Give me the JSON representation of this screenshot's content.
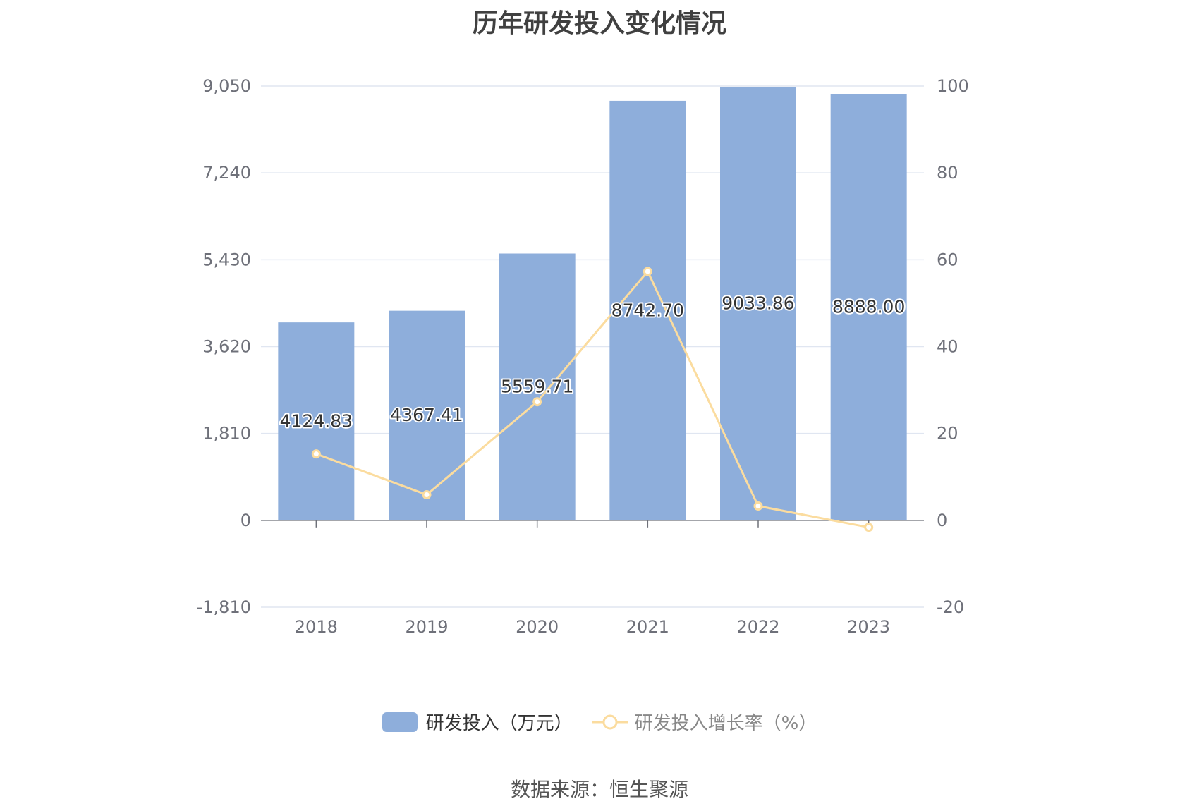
{
  "chart_data": {
    "type": "bar",
    "title": "历年研发投入变化情况",
    "categories": [
      "2018",
      "2019",
      "2020",
      "2021",
      "2022",
      "2023"
    ],
    "series": [
      {
        "name": "研发投入（万元）",
        "type": "bar",
        "axis": "left",
        "values": [
          4124.83,
          4367.41,
          5559.71,
          8742.7,
          9033.86,
          8888.0
        ],
        "labels": [
          "4124.83",
          "4367.41",
          "5559.71",
          "8742.70",
          "9033.86",
          "8888.00"
        ]
      },
      {
        "name": "研发投入增长率（%）",
        "type": "line",
        "axis": "right",
        "values": [
          15.3,
          5.9,
          27.3,
          57.3,
          3.3,
          -1.6
        ]
      }
    ],
    "left_axis": {
      "ticks": [
        "9,050",
        "7,240",
        "5,430",
        "3,620",
        "1,810",
        "0",
        "-1,810"
      ],
      "ylim": [
        -1810,
        9050
      ]
    },
    "right_axis": {
      "ticks": [
        "100",
        "80",
        "60",
        "40",
        "20",
        "0",
        "-20"
      ],
      "ylim": [
        -20,
        100
      ]
    },
    "grid": true,
    "legend_position": "bottom"
  },
  "colors": {
    "bar": "#8eaedb",
    "line": "#fbdc9f",
    "grid": "#e0e6f1",
    "axis_text": "#6e7079",
    "label_text": "#333333",
    "title_text": "#404040"
  },
  "legend": {
    "bar_label": "研发投入（万元）",
    "line_label": "研发投入增长率（%）"
  },
  "source": "数据来源：恒生聚源"
}
